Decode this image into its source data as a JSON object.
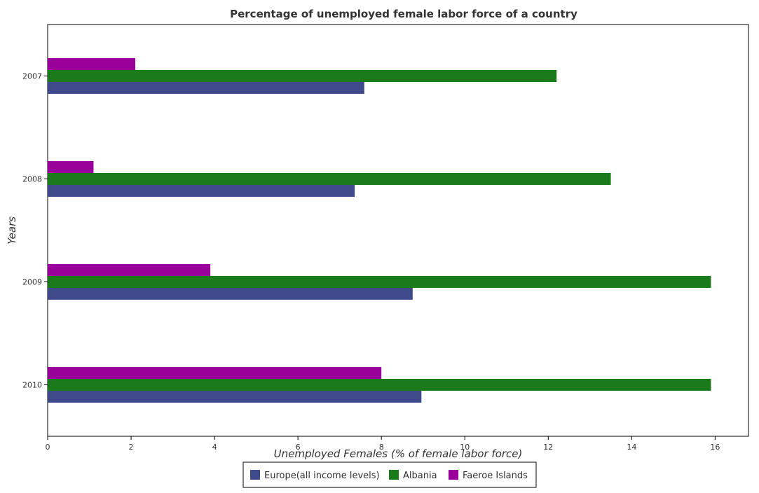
{
  "chart_data": {
    "type": "bar",
    "orientation": "horizontal",
    "title": "Percentage of unemployed female labor force of a country",
    "xlabel": "Unemployed Females (% of female labor force)",
    "ylabel": "Years",
    "categories": [
      "2007",
      "2008",
      "2009",
      "2010"
    ],
    "series": [
      {
        "name": "Europe(all income levels)",
        "color": "#3e4a89",
        "values": [
          7.59,
          7.36,
          8.75,
          8.96
        ]
      },
      {
        "name": "Albania",
        "color": "#1b7b1b",
        "values": [
          12.2,
          13.5,
          15.9,
          15.9
        ]
      },
      {
        "name": "Faeroe Islands",
        "color": "#990099",
        "values": [
          2.1,
          1.1,
          3.9,
          8.0
        ]
      }
    ],
    "xlim": [
      0,
      16.8
    ],
    "xticks": [
      0,
      2,
      4,
      6,
      8,
      10,
      12,
      14,
      16
    ],
    "xtick_labels": [
      "0",
      "2",
      "4",
      "6",
      "8",
      "10",
      "12",
      "14",
      "16"
    ],
    "grid": false,
    "legend_position": "bottom-center"
  }
}
